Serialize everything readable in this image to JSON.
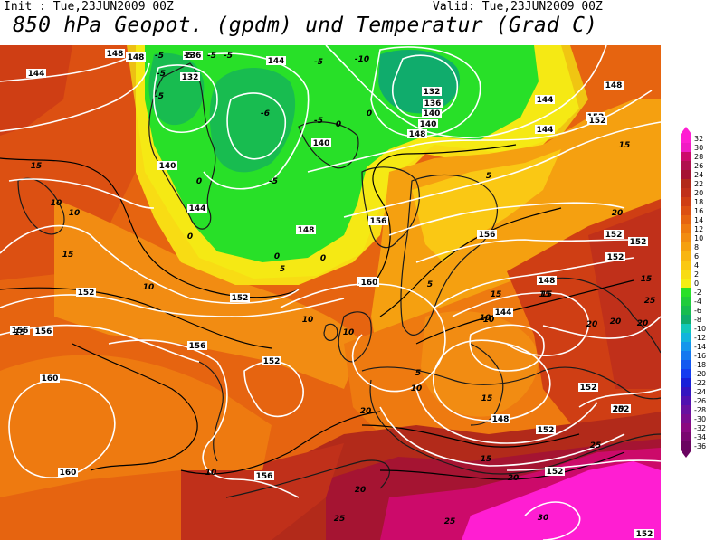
{
  "header": {
    "init": "Init : Tue,23JUN2009 00Z",
    "valid": "Valid: Tue,23JUN2009 00Z",
    "title": "850 hPa Geopot. (gpdm) und Temperatur (Grad C)"
  },
  "legend": {
    "values": [
      "32",
      "30",
      "28",
      "26",
      "24",
      "22",
      "20",
      "18",
      "16",
      "14",
      "12",
      "10",
      "8",
      "6",
      "4",
      "2",
      "0",
      "-2",
      "-4",
      "-6",
      "-8",
      "-10",
      "-12",
      "-14",
      "-16",
      "-18",
      "-20",
      "-22",
      "-24",
      "-26",
      "-28",
      "-30",
      "-32",
      "-34",
      "-36"
    ],
    "colors": [
      "#ff1ed2",
      "#f01cc4",
      "#cc0a6a",
      "#b0104e",
      "#a51432",
      "#b22a1a",
      "#c0301a",
      "#cf3e14",
      "#dc5012",
      "#e66410",
      "#ee7a10",
      "#f28c12",
      "#f5a010",
      "#f8b512",
      "#fac814",
      "#f8dc14",
      "#f4ee14",
      "#28e028",
      "#20cc3c",
      "#18bc50",
      "#10ac6c",
      "#12c8b8",
      "#12b4dc",
      "#1496ec",
      "#1478f0",
      "#1458f0",
      "#143cf0",
      "#1820d8",
      "#3414c0",
      "#5010b0",
      "#6810a0",
      "#7a0c90",
      "#8a0880",
      "#7a0670",
      "#6a0460"
    ]
  },
  "map": {
    "regions": [
      "warm-southwest",
      "cool-north-atlantic",
      "arctic-green-zone",
      "north-sea-band",
      "continental-europe",
      "hot-southeast"
    ],
    "height_labels": [
      {
        "text": "148"
      },
      {
        "text": "144"
      },
      {
        "text": "136"
      },
      {
        "text": "132"
      },
      {
        "text": "144"
      },
      {
        "text": "148"
      },
      {
        "text": "140"
      },
      {
        "text": "144"
      },
      {
        "text": "148"
      },
      {
        "text": "152"
      },
      {
        "text": "156"
      },
      {
        "text": "160"
      },
      {
        "text": "132"
      },
      {
        "text": "136"
      },
      {
        "text": "140"
      },
      {
        "text": "144"
      },
      {
        "text": "148"
      },
      {
        "text": "140"
      },
      {
        "text": "148"
      },
      {
        "text": "144"
      },
      {
        "text": "140"
      },
      {
        "text": "152"
      },
      {
        "text": "156"
      },
      {
        "text": "152"
      },
      {
        "text": "152"
      },
      {
        "text": "152"
      },
      {
        "text": "148"
      },
      {
        "text": "144"
      },
      {
        "text": "152"
      },
      {
        "text": "148"
      },
      {
        "text": "152"
      },
      {
        "text": "152"
      },
      {
        "text": "156"
      },
      {
        "text": "160"
      },
      {
        "text": "156"
      },
      {
        "text": "152"
      },
      {
        "text": "156"
      },
      {
        "text": "160"
      },
      {
        "text": "152"
      },
      {
        "text": "152"
      },
      {
        "text": "160"
      },
      {
        "text": "156"
      },
      {
        "text": "152"
      },
      {
        "text": "152"
      }
    ],
    "temp_labels": [
      {
        "text": "-5"
      },
      {
        "text": "-5"
      },
      {
        "text": "-5"
      },
      {
        "text": "-5"
      },
      {
        "text": "-10"
      },
      {
        "text": "-5"
      },
      {
        "text": "-5"
      },
      {
        "text": "-6"
      },
      {
        "text": "-5"
      },
      {
        "text": "-5"
      },
      {
        "text": "-5"
      },
      {
        "text": "0"
      },
      {
        "text": "0"
      },
      {
        "text": "0"
      },
      {
        "text": "0"
      },
      {
        "text": "5"
      },
      {
        "text": "0"
      },
      {
        "text": "0"
      },
      {
        "text": "5"
      },
      {
        "text": "15"
      },
      {
        "text": "10"
      },
      {
        "text": "10"
      },
      {
        "text": "15"
      },
      {
        "text": "15"
      },
      {
        "text": "10"
      },
      {
        "text": "10"
      },
      {
        "text": "15"
      },
      {
        "text": "20"
      },
      {
        "text": "15"
      },
      {
        "text": "10"
      },
      {
        "text": "5"
      },
      {
        "text": "10"
      },
      {
        "text": "10"
      },
      {
        "text": "15"
      },
      {
        "text": "15"
      },
      {
        "text": "10"
      },
      {
        "text": "5"
      },
      {
        "text": "20"
      },
      {
        "text": "20"
      },
      {
        "text": "15"
      },
      {
        "text": "20"
      },
      {
        "text": "20"
      },
      {
        "text": "25"
      },
      {
        "text": "25"
      },
      {
        "text": "25"
      },
      {
        "text": "30"
      },
      {
        "text": "20"
      },
      {
        "text": "20"
      },
      {
        "text": "15"
      },
      {
        "text": "10"
      },
      {
        "text": "25"
      },
      {
        "text": "15"
      },
      {
        "text": "20"
      }
    ]
  }
}
